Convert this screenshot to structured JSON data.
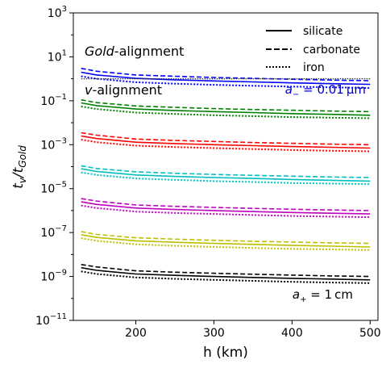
{
  "chart_data": {
    "type": "line",
    "xlabel": "h (km)",
    "ylabel_main": "t",
    "ylabel_main_sub": "v",
    "ylabel_slash": "/t",
    "ylabel_den_sub": "Gold",
    "xlim": [
      120,
      510
    ],
    "ylim_log10": [
      -11,
      3
    ],
    "y_scale": "log",
    "x_ticks": [
      200,
      300,
      400,
      500
    ],
    "y_ticks": [
      {
        "exp": 3,
        "mantissa": "10",
        "sup": "3"
      },
      {
        "exp": 1,
        "mantissa": "10",
        "sup": "1"
      },
      {
        "exp": -1,
        "mantissa": "10",
        "sup": "−1"
      },
      {
        "exp": -3,
        "mantissa": "10",
        "sup": "−3"
      },
      {
        "exp": -5,
        "mantissa": "10",
        "sup": "−5"
      },
      {
        "exp": -7,
        "mantissa": "10",
        "sup": "−7"
      },
      {
        "exp": -9,
        "mantissa": "10",
        "sup": "−9"
      },
      {
        "exp": -11,
        "mantissa": "10",
        "sup": "−11"
      }
    ],
    "legend": {
      "position": "top-right",
      "entries": [
        {
          "label": "silicate",
          "style": "solid"
        },
        {
          "label": "carbonate",
          "style": "dashed"
        },
        {
          "label": "iron",
          "style": "dotted"
        }
      ]
    },
    "annotations": {
      "gold_italic": "Gold",
      "gold_rest": "-alignment",
      "v_italic": "v",
      "v_rest": "-alignment",
      "a_minus_sym": "a",
      "a_minus_sub": "−",
      "a_minus_val": " = 0.01 μm",
      "a_minus_color": "#0000cc",
      "a_plus_sym": "a",
      "a_plus_sub": "+",
      "a_plus_val": " = 1 cm"
    },
    "reference_line": {
      "y": 1.0,
      "style": "dotted",
      "color": "#333333"
    },
    "x": [
      130,
      150,
      200,
      250,
      300,
      350,
      400,
      450,
      500
    ],
    "series": [
      {
        "color": "#0000ff",
        "solid": [
          2.0,
          1.5,
          1.05,
          0.9,
          0.8,
          0.72,
          0.65,
          0.6,
          0.56
        ],
        "dashed": [
          3.0,
          2.2,
          1.5,
          1.3,
          1.15,
          1.05,
          0.95,
          0.88,
          0.82
        ],
        "dotted": [
          1.3,
          1.0,
          0.7,
          0.6,
          0.53,
          0.48,
          0.44,
          0.41,
          0.38
        ]
      },
      {
        "color": "#008000",
        "solid": [
          0.08,
          0.06,
          0.042,
          0.036,
          0.032,
          0.029,
          0.026,
          0.024,
          0.022
        ],
        "dashed": [
          0.11,
          0.082,
          0.058,
          0.05,
          0.044,
          0.04,
          0.037,
          0.034,
          0.032
        ],
        "dotted": [
          0.055,
          0.042,
          0.029,
          0.025,
          0.022,
          0.02,
          0.018,
          0.017,
          0.016
        ]
      },
      {
        "color": "#ff0000",
        "solid": [
          0.0025,
          0.0019,
          0.0013,
          0.00112,
          0.001,
          0.0009,
          0.00082,
          0.00076,
          0.0007
        ],
        "dashed": [
          0.0035,
          0.0027,
          0.0018,
          0.00156,
          0.0014,
          0.00126,
          0.00115,
          0.00106,
          0.001
        ],
        "dotted": [
          0.0017,
          0.0013,
          0.0009,
          0.00078,
          0.0007,
          0.00063,
          0.00057,
          0.00053,
          0.0005
        ]
      },
      {
        "color": "#00bfbf",
        "solid": [
          8e-05,
          6e-05,
          4.2e-05,
          3.6e-05,
          3.2e-05,
          2.9e-05,
          2.6e-05,
          2.4e-05,
          2.2e-05
        ],
        "dashed": [
          0.00011,
          8.2e-05,
          5.8e-05,
          5e-05,
          4.4e-05,
          4e-05,
          3.7e-05,
          3.4e-05,
          3.2e-05
        ],
        "dotted": [
          5.5e-05,
          4.2e-05,
          2.9e-05,
          2.5e-05,
          2.2e-05,
          2e-05,
          1.8e-05,
          1.7e-05,
          1.6e-05
        ]
      },
      {
        "color": "#bf00bf",
        "solid": [
          2.5e-06,
          1.9e-06,
          1.3e-06,
          1.12e-06,
          1e-06,
          9e-07,
          8.2e-07,
          7.6e-07,
          7e-07
        ],
        "dashed": [
          3.5e-06,
          2.7e-06,
          1.8e-06,
          1.56e-06,
          1.4e-06,
          1.26e-06,
          1.15e-06,
          1.06e-06,
          1e-06
        ],
        "dotted": [
          1.7e-06,
          1.3e-06,
          9e-07,
          7.8e-07,
          7e-07,
          6.3e-07,
          5.7e-07,
          5.3e-07,
          5e-07
        ]
      },
      {
        "color": "#bfbf00",
        "solid": [
          8e-08,
          6e-08,
          4.2e-08,
          3.6e-08,
          3.2e-08,
          2.9e-08,
          2.6e-08,
          2.4e-08,
          2.2e-08
        ],
        "dashed": [
          1.1e-07,
          8.2e-08,
          5.8e-08,
          5e-08,
          4.4e-08,
          4e-08,
          3.7e-08,
          3.4e-08,
          3.2e-08
        ],
        "dotted": [
          5.5e-08,
          4.2e-08,
          2.9e-08,
          2.5e-08,
          2.2e-08,
          2e-08,
          1.8e-08,
          1.7e-08,
          1.6e-08
        ]
      },
      {
        "color": "#000000",
        "solid": [
          2.5e-09,
          1.9e-09,
          1.3e-09,
          1.12e-09,
          1e-09,
          9e-10,
          8.2e-10,
          7.6e-10,
          7e-10
        ],
        "dashed": [
          3.5e-09,
          2.7e-09,
          1.8e-09,
          1.56e-09,
          1.4e-09,
          1.26e-09,
          1.15e-09,
          1.06e-09,
          1e-09
        ],
        "dotted": [
          1.7e-09,
          1.3e-09,
          9e-10,
          7.8e-10,
          7e-10,
          6.3e-10,
          5.7e-10,
          5.3e-10,
          5e-10
        ]
      }
    ]
  }
}
